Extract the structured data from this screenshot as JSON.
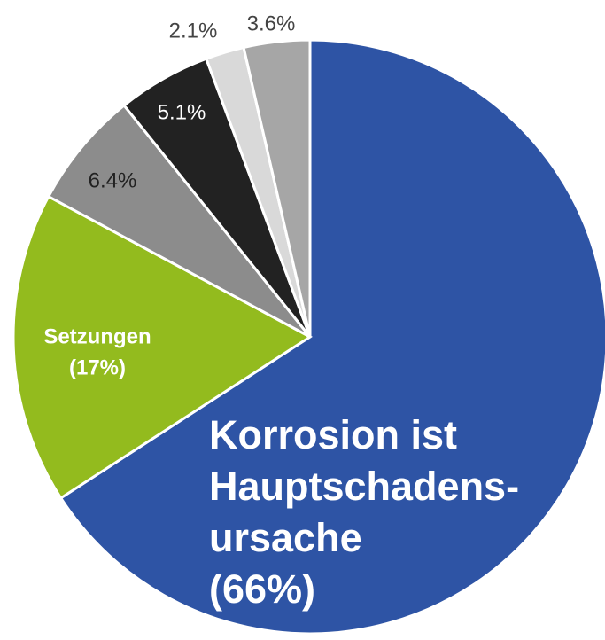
{
  "chart_data": {
    "type": "pie",
    "categories": [
      "Korrosion ist Hauptschadens-ursache",
      "Setzungen",
      null,
      null,
      null,
      null
    ],
    "values": [
      66,
      17,
      6.4,
      5.1,
      2.1,
      3.6
    ],
    "value_labels": [
      "(66%)",
      "(17%)",
      "6.4%",
      "5.1%",
      "2.1%",
      "3.6%"
    ],
    "colors": [
      "#2e54a5",
      "#93bb1e",
      "#8c8c8c",
      "#222222",
      "#d9d9d9",
      "#a6a6a6"
    ]
  }
}
